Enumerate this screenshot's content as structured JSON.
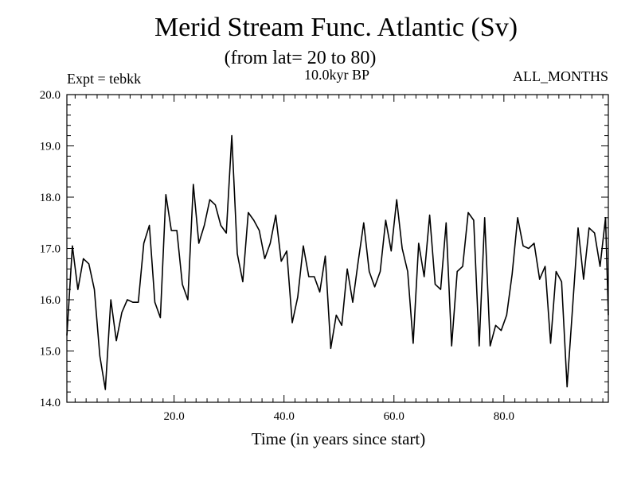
{
  "chart_data": {
    "type": "line",
    "title": "Merid Stream Func. Atlantic (Sv)",
    "subtitle": "(from lat= 20 to 80)",
    "annotation_left": "Expt = tebkk",
    "annotation_center": "10.0kyr BP",
    "annotation_right": "ALL_MONTHS",
    "xlabel": "Time (in years since start)",
    "ylabel": "",
    "xlim": [
      0.5,
      99
    ],
    "ylim": [
      14.0,
      20.0
    ],
    "xticks": [
      20,
      40,
      60,
      80
    ],
    "xtick_labels": [
      "20.0",
      "40.0",
      "60.0",
      "80.0"
    ],
    "yticks": [
      14,
      15,
      16,
      17,
      18,
      19,
      20
    ],
    "ytick_labels": [
      "14.0",
      "15.0",
      "16.0",
      "17.0",
      "18.0",
      "19.0",
      "20.0"
    ],
    "series": [
      {
        "name": "Merid Stream Func. Atlantic",
        "x": [
          0.5,
          1.5,
          2.5,
          3.5,
          4.5,
          5.5,
          6.5,
          7.5,
          8.5,
          9.5,
          10.5,
          11.5,
          12.5,
          13.5,
          14.5,
          15.5,
          16.5,
          17.5,
          18.5,
          19.5,
          20.5,
          21.5,
          22.5,
          23.5,
          24.5,
          25.5,
          26.5,
          27.5,
          28.5,
          29.5,
          30.5,
          31.5,
          32.5,
          33.5,
          34.5,
          35.5,
          36.5,
          37.5,
          38.5,
          39.5,
          40.5,
          41.5,
          42.5,
          43.5,
          44.5,
          45.5,
          46.5,
          47.5,
          48.5,
          49.5,
          50.5,
          51.5,
          52.5,
          53.5,
          54.5,
          55.5,
          56.5,
          57.5,
          58.5,
          59.5,
          60.5,
          61.5,
          62.5,
          63.5,
          64.5,
          65.5,
          66.5,
          67.5,
          68.5,
          69.5,
          70.5,
          71.5,
          72.5,
          73.5,
          74.5,
          75.5,
          76.5,
          77.5,
          78.5,
          79.5,
          80.5,
          81.5,
          82.5,
          83.5,
          84.5,
          85.5,
          86.5,
          87.5,
          88.5,
          89.5,
          90.5,
          91.5,
          92.5,
          93.5,
          94.5,
          95.5,
          96.5,
          97.5,
          98.5,
          99.0
        ],
        "values": [
          15.3,
          17.05,
          16.2,
          16.8,
          16.7,
          16.2,
          14.9,
          14.25,
          16.0,
          15.2,
          15.75,
          16.0,
          15.95,
          15.95,
          17.1,
          17.45,
          15.95,
          15.65,
          18.05,
          17.35,
          17.35,
          16.3,
          16.0,
          18.25,
          17.1,
          17.45,
          17.95,
          17.85,
          17.45,
          17.3,
          19.2,
          16.9,
          16.35,
          17.7,
          17.55,
          17.35,
          16.8,
          17.1,
          17.65,
          16.75,
          16.95,
          15.55,
          16.05,
          17.05,
          16.45,
          16.45,
          16.15,
          16.85,
          15.05,
          15.7,
          15.5,
          16.6,
          15.95,
          16.75,
          17.5,
          16.55,
          16.25,
          16.55,
          17.55,
          16.95,
          17.95,
          17.0,
          16.55,
          15.15,
          17.1,
          16.45,
          17.65,
          16.3,
          16.2,
          17.5,
          15.1,
          16.55,
          16.65,
          17.7,
          17.55,
          15.1,
          17.6,
          15.1,
          15.5,
          15.4,
          15.7,
          16.5,
          17.6,
          17.05,
          17.0,
          17.1,
          16.4,
          16.65,
          15.15,
          16.55,
          16.35,
          14.3,
          15.85,
          17.4,
          16.4,
          17.4,
          17.3,
          16.65,
          17.6,
          15.7
        ]
      }
    ]
  }
}
